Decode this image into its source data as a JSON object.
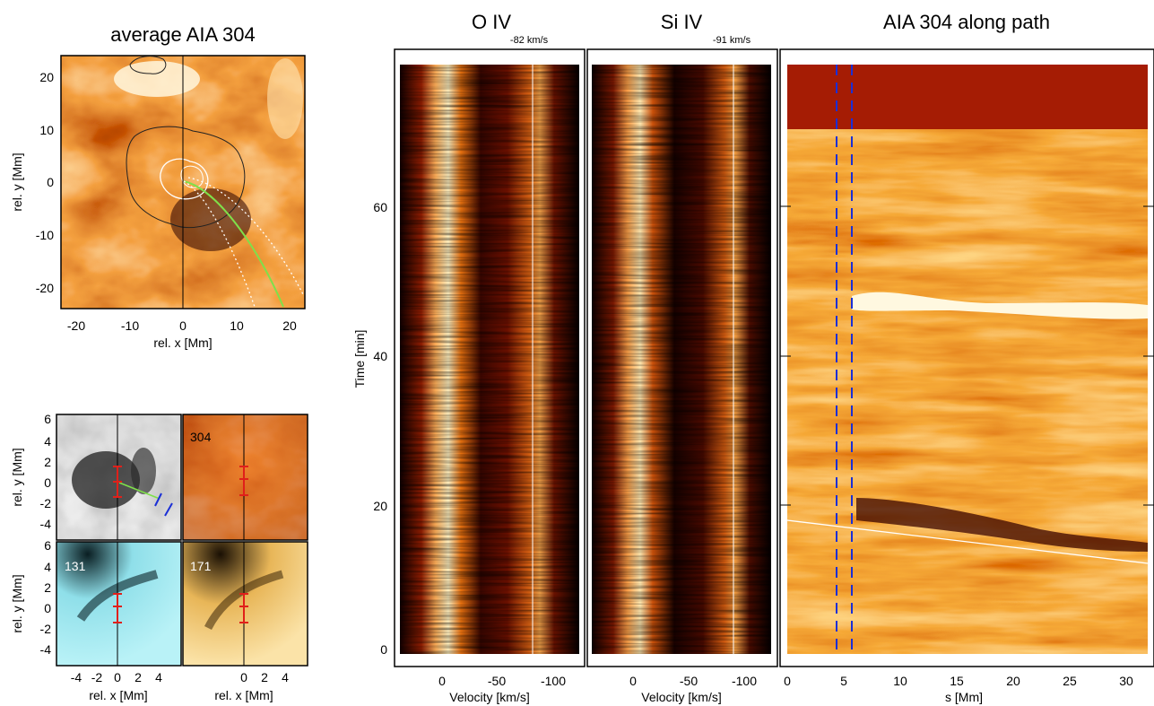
{
  "panels": {
    "avg": {
      "title": "average AIA 304",
      "xlabel": "rel. x [Mm]",
      "ylabel": "rel. y [Mm]",
      "xticks": [
        "-20",
        "-10",
        "0",
        "10",
        "20"
      ],
      "yticks": [
        "20",
        "10",
        "0",
        "-10",
        "-20"
      ]
    },
    "insets": {
      "labels": [
        "304",
        "131",
        "171"
      ],
      "xlabel": "rel. x [Mm]",
      "ylabel": "rel. y [Mm]",
      "xticks": [
        "-4",
        "-2",
        "0",
        "2",
        "4"
      ],
      "yticks": [
        "6",
        "4",
        "2",
        "0",
        "-2",
        "-4"
      ]
    },
    "oiv": {
      "title": "O IV",
      "velocity_label": "-82 km/s",
      "xlabel": "Velocity [km/s]",
      "ylabel": "Time [min]",
      "xticks": [
        "0",
        "-50",
        "-100"
      ],
      "yticks": [
        "60",
        "40",
        "20",
        "0"
      ]
    },
    "siiv": {
      "title": "Si IV",
      "velocity_label": "-91 km/s",
      "xlabel": "Velocity [km/s]",
      "xticks": [
        "0",
        "-50",
        "-100"
      ]
    },
    "path": {
      "title": "AIA 304 along path",
      "xlabel": "s [Mm]",
      "xticks": [
        "0",
        "5",
        "10",
        "15",
        "20",
        "25",
        "30"
      ]
    }
  },
  "colors": {
    "hot_dark": "#2a0000",
    "hot_mid": "#c23a06",
    "hot_bright": "#ffe6b0",
    "cyan": "#9fe9f2",
    "gold": "#f2c56a",
    "marker_red": "#e0201a",
    "path_green": "#7fe04a",
    "dash_blue": "#1a2fd6"
  }
}
